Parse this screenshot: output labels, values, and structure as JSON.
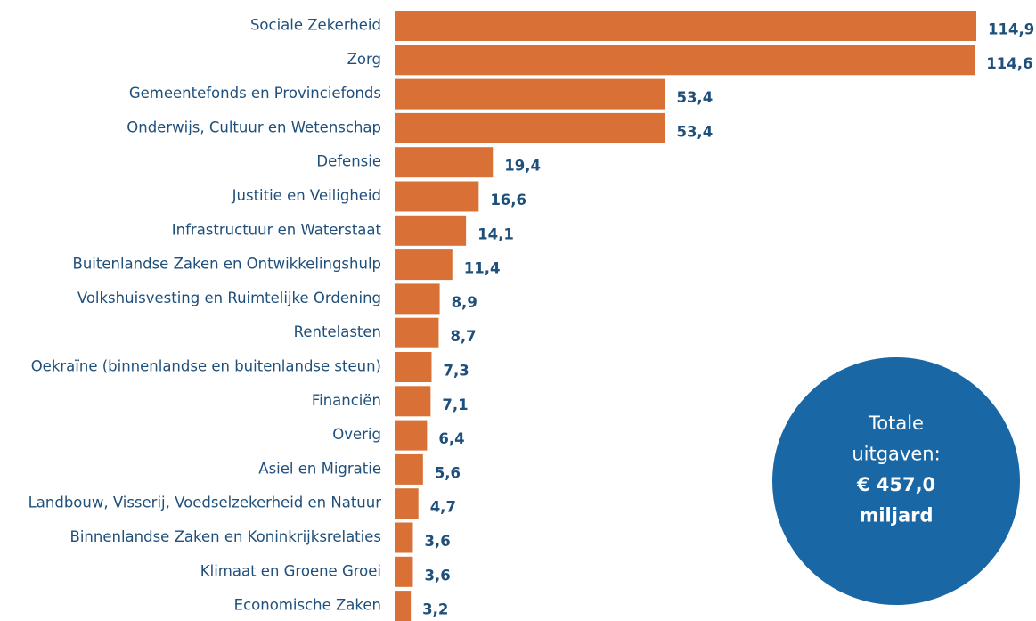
{
  "chart_data": {
    "type": "bar",
    "orientation": "horizontal",
    "categories": [
      "Sociale Zekerheid",
      "Zorg",
      "Gemeentefonds en Provinciefonds",
      "Onderwijs, Cultuur en Wetenschap",
      "Defensie",
      "Justitie en Veiligheid",
      "Infrastructuur en Waterstaat",
      "Buitenlandse Zaken en Ontwikkelingshulp",
      "Volkshuisvesting en Ruimtelijke Ordening",
      "Rentelasten",
      "Oekraïne (binnenlandse en buitenlandse steun)",
      "Financiën",
      "Overig",
      "Asiel en Migratie",
      "Landbouw, Visserij, Voedselzekerheid en Natuur",
      "Binnenlandse Zaken en Koninkrijksrelaties",
      "Klimaat en Groene Groei",
      "Economische Zaken"
    ],
    "values": [
      114.9,
      114.6,
      53.4,
      53.4,
      19.4,
      16.6,
      14.1,
      11.4,
      8.9,
      8.7,
      7.3,
      7.1,
      6.4,
      5.6,
      4.7,
      3.6,
      3.6,
      3.2
    ],
    "value_labels": [
      "114,9",
      "114,6",
      "53,4",
      "53,4",
      "19,4",
      "16,6",
      "14,1",
      "11,4",
      "8,9",
      "8,7",
      "7,3",
      "7,1",
      "6,4",
      "5,6",
      "4,7",
      "3,6",
      "3,6",
      "3,2"
    ],
    "color": "#d97136",
    "annotation": {
      "lines": [
        "Totale",
        "uitgaven:",
        "€ 457,0",
        "miljard"
      ],
      "color": "#1a67a6"
    }
  }
}
